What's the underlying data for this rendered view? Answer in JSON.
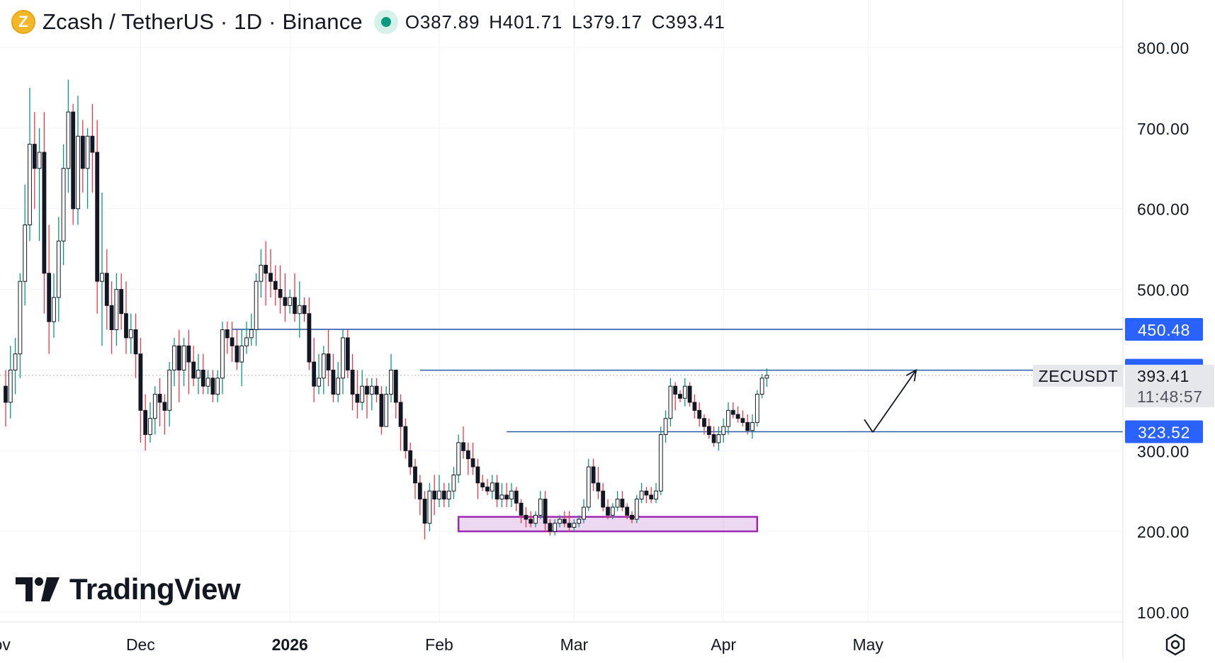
{
  "header": {
    "coin_glyph": "Z",
    "title": "Zcash / TetherUS · 1D · Binance",
    "ohlc": {
      "open": "O387.89",
      "high": "H401.71",
      "low": "L379.17",
      "close": "C393.41"
    }
  },
  "logo": {
    "text": "TradingView"
  },
  "colors": {
    "up": "#089981",
    "down": "#f23645",
    "candle": "#131722",
    "line": "#2a5caa",
    "zone": "#9c27b0",
    "tag": "#2962ff"
  },
  "icons": {
    "coin": "zcash-coin-icon",
    "status": "market-open-dot-icon",
    "settings": "chart-settings-icon",
    "logo": "tradingview-logo-icon"
  },
  "chart_data": {
    "type": "candlestick",
    "symbol": "ZECUSDT",
    "interval": "1D",
    "ylim": [
      80,
      820
    ],
    "y_ticks": [
      {
        "value": 100,
        "label": "100.00"
      },
      {
        "value": 200,
        "label": "200.00"
      },
      {
        "value": 300,
        "label": "300.00"
      },
      {
        "value": 500,
        "label": "500.00"
      },
      {
        "value": 600,
        "label": "600.00"
      },
      {
        "value": 700,
        "label": "700.00"
      },
      {
        "value": 800,
        "label": "800.00"
      }
    ],
    "x_ticks": [
      {
        "index": -2,
        "label": "Nov",
        "bold": false
      },
      {
        "index": 28,
        "label": "Dec",
        "bold": false
      },
      {
        "index": 59,
        "label": "2026",
        "bold": true
      },
      {
        "index": 90,
        "label": "Feb",
        "bold": false
      },
      {
        "index": 118,
        "label": "Mar",
        "bold": false
      },
      {
        "index": 149,
        "label": "Apr",
        "bold": false
      },
      {
        "index": 179,
        "label": "May",
        "bold": false
      }
    ],
    "horizontal_lines": [
      {
        "value": 450.48,
        "label": "450.48",
        "start_index": 47
      },
      {
        "value": 399.83,
        "label": "399.83",
        "start_index": 86
      },
      {
        "value": 323.52,
        "label": "323.52",
        "start_index": 104
      }
    ],
    "last_price": {
      "value": 393.41,
      "label": "393.41",
      "symbol": "ZECUSDT",
      "countdown": "11:48:57"
    },
    "zone": {
      "x_start_index": 94,
      "x_end_index": 156,
      "y_low": 200,
      "y_high": 218
    },
    "projection": [
      {
        "index": 180,
        "value": 323
      },
      {
        "index": 189,
        "value": 400
      }
    ],
    "candles": [
      [
        380,
        400,
        330,
        360
      ],
      [
        360,
        430,
        340,
        400
      ],
      [
        400,
        440,
        370,
        420
      ],
      [
        420,
        520,
        390,
        510
      ],
      [
        510,
        630,
        480,
        580
      ],
      [
        580,
        750,
        560,
        680
      ],
      [
        680,
        720,
        600,
        650
      ],
      [
        650,
        700,
        560,
        670
      ],
      [
        670,
        720,
        470,
        520
      ],
      [
        520,
        580,
        420,
        460
      ],
      [
        460,
        520,
        440,
        490
      ],
      [
        490,
        590,
        460,
        560
      ],
      [
        560,
        680,
        530,
        650
      ],
      [
        650,
        760,
        620,
        720
      ],
      [
        720,
        730,
        580,
        600
      ],
      [
        600,
        740,
        580,
        690
      ],
      [
        690,
        710,
        620,
        650
      ],
      [
        650,
        700,
        600,
        690
      ],
      [
        690,
        730,
        620,
        670
      ],
      [
        670,
        710,
        470,
        510
      ],
      [
        510,
        620,
        430,
        520
      ],
      [
        520,
        550,
        450,
        480
      ],
      [
        480,
        510,
        420,
        450
      ],
      [
        450,
        520,
        430,
        500
      ],
      [
        500,
        520,
        450,
        470
      ],
      [
        470,
        510,
        420,
        440
      ],
      [
        440,
        470,
        420,
        450
      ],
      [
        450,
        470,
        390,
        420
      ],
      [
        420,
        440,
        310,
        350
      ],
      [
        350,
        370,
        300,
        320
      ],
      [
        320,
        360,
        310,
        340
      ],
      [
        340,
        380,
        320,
        370
      ],
      [
        370,
        390,
        330,
        360
      ],
      [
        360,
        370,
        320,
        350
      ],
      [
        350,
        410,
        330,
        400
      ],
      [
        400,
        440,
        380,
        430
      ],
      [
        430,
        450,
        360,
        400
      ],
      [
        400,
        440,
        380,
        430
      ],
      [
        430,
        450,
        370,
        410
      ],
      [
        410,
        430,
        380,
        390
      ],
      [
        390,
        420,
        370,
        400
      ],
      [
        400,
        420,
        370,
        380
      ],
      [
        380,
        400,
        370,
        390
      ],
      [
        390,
        400,
        360,
        370
      ],
      [
        370,
        400,
        360,
        390
      ],
      [
        390,
        460,
        370,
        450
      ],
      [
        450,
        460,
        420,
        440
      ],
      [
        440,
        460,
        410,
        430
      ],
      [
        430,
        450,
        400,
        410
      ],
      [
        410,
        450,
        380,
        430
      ],
      [
        430,
        460,
        420,
        440
      ],
      [
        440,
        470,
        430,
        450
      ],
      [
        450,
        520,
        430,
        510
      ],
      [
        510,
        550,
        490,
        530
      ],
      [
        530,
        560,
        480,
        520
      ],
      [
        520,
        550,
        490,
        510
      ],
      [
        510,
        530,
        480,
        500
      ],
      [
        500,
        530,
        470,
        490
      ],
      [
        490,
        520,
        460,
        480
      ],
      [
        480,
        500,
        470,
        490
      ],
      [
        490,
        520,
        460,
        470
      ],
      [
        470,
        510,
        440,
        480
      ],
      [
        480,
        490,
        460,
        470
      ],
      [
        470,
        490,
        400,
        410
      ],
      [
        410,
        440,
        360,
        380
      ],
      [
        380,
        420,
        370,
        390
      ],
      [
        390,
        430,
        370,
        420
      ],
      [
        420,
        450,
        380,
        400
      ],
      [
        400,
        420,
        360,
        370
      ],
      [
        370,
        410,
        360,
        390
      ],
      [
        390,
        450,
        370,
        440
      ],
      [
        440,
        450,
        390,
        400
      ],
      [
        400,
        420,
        350,
        370
      ],
      [
        370,
        400,
        340,
        360
      ],
      [
        360,
        400,
        350,
        380
      ],
      [
        380,
        390,
        340,
        370
      ],
      [
        370,
        390,
        350,
        380
      ],
      [
        380,
        390,
        360,
        370
      ],
      [
        370,
        380,
        320,
        330
      ],
      [
        330,
        380,
        330,
        370
      ],
      [
        370,
        420,
        360,
        400
      ],
      [
        400,
        400,
        340,
        360
      ],
      [
        360,
        370,
        300,
        330
      ],
      [
        330,
        340,
        290,
        300
      ],
      [
        300,
        310,
        270,
        280
      ],
      [
        280,
        290,
        240,
        260
      ],
      [
        260,
        270,
        220,
        240
      ],
      [
        240,
        250,
        190,
        210
      ],
      [
        210,
        260,
        200,
        250
      ],
      [
        250,
        270,
        220,
        240
      ],
      [
        240,
        270,
        230,
        250
      ],
      [
        250,
        260,
        230,
        240
      ],
      [
        240,
        260,
        230,
        250
      ],
      [
        250,
        280,
        240,
        270
      ],
      [
        270,
        320,
        260,
        310
      ],
      [
        310,
        330,
        290,
        300
      ],
      [
        300,
        310,
        270,
        290
      ],
      [
        290,
        310,
        270,
        280
      ],
      [
        280,
        290,
        240,
        260
      ],
      [
        260,
        270,
        250,
        255
      ],
      [
        255,
        265,
        245,
        250
      ],
      [
        250,
        270,
        240,
        260
      ],
      [
        260,
        270,
        230,
        240
      ],
      [
        240,
        260,
        230,
        245
      ],
      [
        245,
        260,
        230,
        240
      ],
      [
        240,
        260,
        230,
        250
      ],
      [
        250,
        255,
        225,
        235
      ],
      [
        235,
        240,
        210,
        220
      ],
      [
        220,
        230,
        205,
        215
      ],
      [
        215,
        225,
        205,
        210
      ],
      [
        210,
        225,
        205,
        220
      ],
      [
        220,
        250,
        215,
        240
      ],
      [
        240,
        250,
        200,
        210
      ],
      [
        210,
        215,
        195,
        200
      ],
      [
        200,
        215,
        195,
        210
      ],
      [
        210,
        220,
        205,
        215
      ],
      [
        215,
        225,
        205,
        210
      ],
      [
        210,
        225,
        200,
        205
      ],
      [
        205,
        215,
        200,
        210
      ],
      [
        210,
        220,
        205,
        215
      ],
      [
        215,
        240,
        210,
        230
      ],
      [
        230,
        290,
        225,
        280
      ],
      [
        280,
        290,
        250,
        260
      ],
      [
        260,
        280,
        240,
        250
      ],
      [
        250,
        260,
        225,
        230
      ],
      [
        230,
        240,
        215,
        220
      ],
      [
        220,
        235,
        215,
        230
      ],
      [
        230,
        250,
        225,
        240
      ],
      [
        240,
        250,
        225,
        230
      ],
      [
        230,
        235,
        215,
        220
      ],
      [
        220,
        225,
        210,
        215
      ],
      [
        215,
        245,
        210,
        240
      ],
      [
        240,
        260,
        235,
        250
      ],
      [
        250,
        255,
        235,
        245
      ],
      [
        245,
        255,
        235,
        240
      ],
      [
        240,
        260,
        235,
        250
      ],
      [
        250,
        330,
        245,
        320
      ],
      [
        320,
        350,
        310,
        340
      ],
      [
        340,
        390,
        330,
        380
      ],
      [
        380,
        385,
        350,
        370
      ],
      [
        370,
        375,
        360,
        365
      ],
      [
        365,
        390,
        355,
        380
      ],
      [
        380,
        385,
        355,
        360
      ],
      [
        360,
        370,
        340,
        350
      ],
      [
        350,
        360,
        330,
        340
      ],
      [
        340,
        345,
        320,
        330
      ],
      [
        330,
        340,
        315,
        320
      ],
      [
        320,
        330,
        305,
        310
      ],
      [
        310,
        330,
        300,
        320
      ],
      [
        320,
        340,
        310,
        330
      ],
      [
        330,
        360,
        320,
        350
      ],
      [
        350,
        360,
        340,
        345
      ],
      [
        345,
        355,
        335,
        340
      ],
      [
        340,
        350,
        330,
        335
      ],
      [
        335,
        345,
        320,
        325
      ],
      [
        325,
        345,
        315,
        335
      ],
      [
        335,
        375,
        330,
        370
      ],
      [
        370,
        395,
        365,
        390
      ],
      [
        390,
        402,
        379,
        393.41
      ]
    ]
  }
}
